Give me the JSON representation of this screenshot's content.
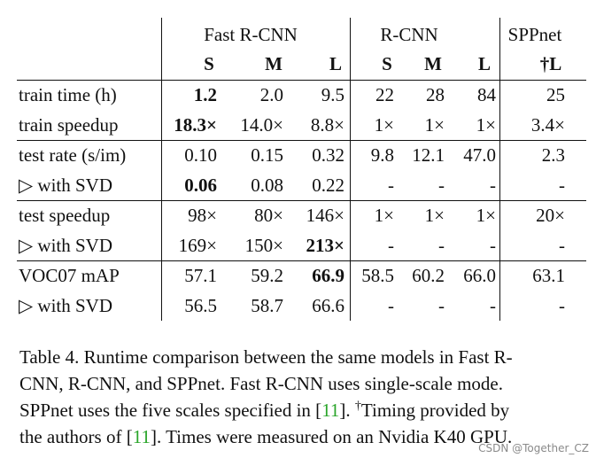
{
  "table": {
    "group_headers": [
      "Fast R-CNN",
      "R-CNN",
      "SPPnet"
    ],
    "sub_headers": [
      "S",
      "M",
      "L",
      "S",
      "M",
      "L",
      "†L"
    ],
    "rows": [
      {
        "label": "train time (h)",
        "cells": [
          "1.2",
          "2.0",
          "9.5",
          "22",
          "28",
          "84",
          "25"
        ]
      },
      {
        "label": "train speedup",
        "cells": [
          "18.3×",
          "14.0×",
          "8.8×",
          "1×",
          "1×",
          "1×",
          "3.4×"
        ]
      },
      {
        "label": "test rate (s/im)",
        "cells": [
          "0.10",
          "0.15",
          "0.32",
          "9.8",
          "12.1",
          "47.0",
          "2.3"
        ]
      },
      {
        "label": "▷ with SVD",
        "cells": [
          "0.06",
          "0.08",
          "0.22",
          "-",
          "-",
          "-",
          "-"
        ]
      },
      {
        "label": "test speedup",
        "cells": [
          "98×",
          "80×",
          "146×",
          "1×",
          "1×",
          "1×",
          "20×"
        ]
      },
      {
        "label": "▷ with SVD",
        "cells": [
          "169×",
          "150×",
          "213×",
          "-",
          "-",
          "-",
          "-"
        ]
      },
      {
        "label": "VOC07 mAP",
        "cells": [
          "57.1",
          "59.2",
          "66.9",
          "58.5",
          "60.2",
          "66.0",
          "63.1"
        ]
      },
      {
        "label": "▷ with SVD",
        "cells": [
          "56.5",
          "58.7",
          "66.6",
          "-",
          "-",
          "-",
          "-"
        ]
      }
    ],
    "bold_cells": [
      "0.0",
      "1.0",
      "3.0",
      "5.2",
      "6.2"
    ]
  },
  "caption": {
    "line1": "Table 4. Runtime comparison between the same models in Fast R-",
    "line2": "CNN, R-CNN, and SPPnet. Fast R-CNN uses single-scale mode.",
    "line3_a": "SPPnet uses the five scales specified in [",
    "line3_ref": "11",
    "line3_b": "]. ",
    "line3_dagger": "†",
    "line3_c": "Timing provided by",
    "line4_a": "the authors of [",
    "line4_ref": "11",
    "line4_b": "]. Times were measured on an Nvidia K40 GPU."
  },
  "watermark": "CSDN @Together_CZ",
  "colors": {
    "link": "#2aa52a",
    "text": "#111111"
  }
}
